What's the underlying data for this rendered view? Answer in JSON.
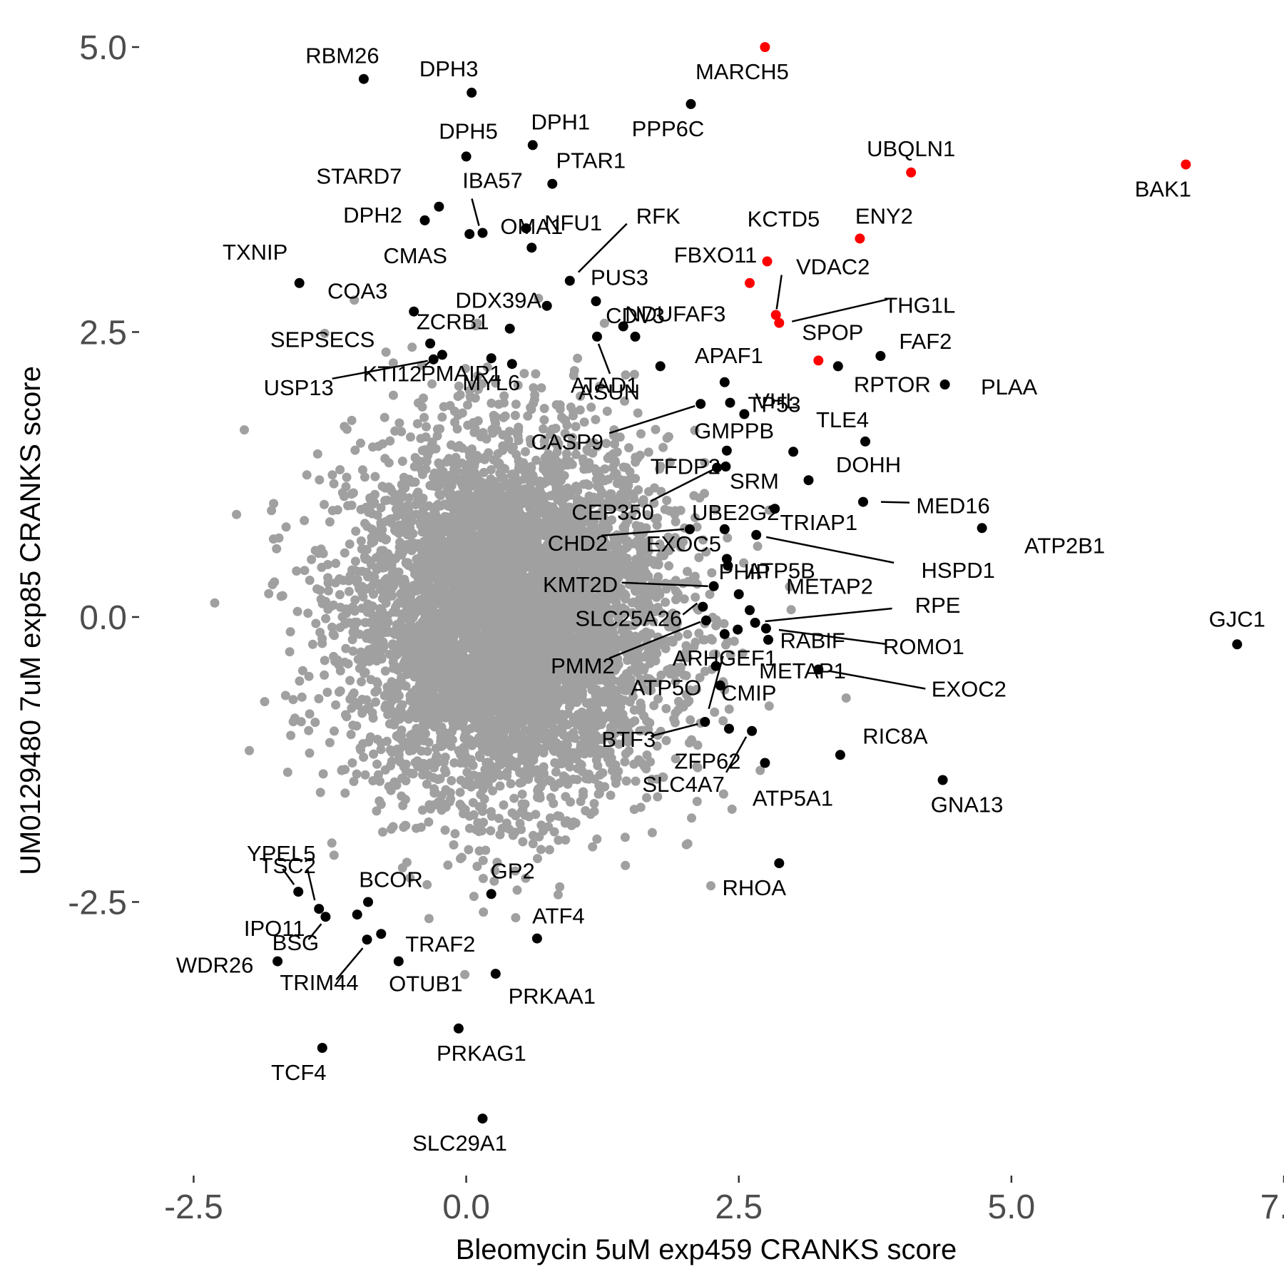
{
  "chart_data": {
    "type": "scatter",
    "title": "",
    "xlabel": "Bleomycin 5uM exp459 CRANKS score",
    "ylabel": "UM0129480 7uM exp85 CRANKS score",
    "xlim": [
      -3.0,
      7.5
    ],
    "ylim": [
      -4.85,
      5.1
    ],
    "x_ticks": [
      -2.5,
      0.0,
      2.5,
      5.0,
      7.5
    ],
    "x_tick_labels": [
      "-2.5",
      "0.0",
      "2.5",
      "5.0",
      "7.5"
    ],
    "y_ticks": [
      -2.5,
      0.0,
      2.5,
      5.0
    ],
    "y_tick_labels": [
      "-2.5",
      "0.0",
      "2.5",
      "5.0"
    ],
    "grid": false,
    "colors": {
      "background": "#gray_points_placeholder",
      "gray": "#a0a0a0",
      "black": "#000000",
      "red": "#ff0000"
    },
    "background_cloud": {
      "center": [
        0.4,
        0.0
      ],
      "sd": [
        0.72,
        0.78
      ],
      "count": 6000,
      "color": "gray"
    },
    "points": [
      {
        "label": "RBM26",
        "x": -0.94,
        "y": 4.72,
        "color": "black"
      },
      {
        "label": "DPH3",
        "x": 0.05,
        "y": 4.6,
        "color": "black"
      },
      {
        "label": "MARCH5",
        "x": 2.74,
        "y": 5.0,
        "color": "red"
      },
      {
        "label": "PPP6C",
        "x": 2.06,
        "y": 4.5,
        "color": "black"
      },
      {
        "label": "DPH1",
        "x": 0.61,
        "y": 4.14,
        "color": "black"
      },
      {
        "label": "DPH5",
        "x": 0.0,
        "y": 4.04,
        "color": "black"
      },
      {
        "label": "UBQLN1",
        "x": 4.08,
        "y": 3.9,
        "color": "red"
      },
      {
        "label": "BAK1",
        "x": 6.6,
        "y": 3.97,
        "color": "red"
      },
      {
        "label": "PTAR1",
        "x": 0.79,
        "y": 3.8,
        "color": "black"
      },
      {
        "label": "STARD7",
        "x": -0.25,
        "y": 3.6,
        "color": "black"
      },
      {
        "label": "IBA57",
        "x": 0.15,
        "y": 3.37,
        "color": "black"
      },
      {
        "label": "DPH2",
        "x": -0.38,
        "y": 3.48,
        "color": "black"
      },
      {
        "label": "NFU1",
        "x": 0.55,
        "y": 3.41,
        "color": "black"
      },
      {
        "label": "RFK",
        "x": 0.95,
        "y": 2.95,
        "color": "black"
      },
      {
        "label": "KCTD5",
        "x": 2.76,
        "y": 3.12,
        "color": "red"
      },
      {
        "label": "ENY2",
        "x": 3.61,
        "y": 3.32,
        "color": "red"
      },
      {
        "label": "CMAS",
        "x": 0.03,
        "y": 3.36,
        "color": "black"
      },
      {
        "label": "OMA1",
        "x": 0.6,
        "y": 3.24,
        "color": "black"
      },
      {
        "label": "FBXO11",
        "x": 2.6,
        "y": 2.93,
        "color": "red"
      },
      {
        "label": "VDAC2",
        "x": 2.84,
        "y": 2.65,
        "color": "red"
      },
      {
        "label": "TXNIP",
        "x": -1.53,
        "y": 2.93,
        "color": "black"
      },
      {
        "label": "PUS3",
        "x": 1.19,
        "y": 2.77,
        "color": "black"
      },
      {
        "label": "DDX39A",
        "x": 0.74,
        "y": 2.73,
        "color": "black"
      },
      {
        "label": "NDUFAF3",
        "x": 1.44,
        "y": 2.55,
        "color": "black"
      },
      {
        "label": "THG1L",
        "x": 2.87,
        "y": 2.58,
        "color": "red"
      },
      {
        "label": "COA3",
        "x": -0.48,
        "y": 2.68,
        "color": "black"
      },
      {
        "label": "CDV3",
        "x": 1.55,
        "y": 2.46,
        "color": "black"
      },
      {
        "label": "ZCRB1",
        "x": 0.4,
        "y": 2.53,
        "color": "black"
      },
      {
        "label": "SEPSECS",
        "x": -0.33,
        "y": 2.4,
        "color": "black"
      },
      {
        "label": "APAF1",
        "x": 2.37,
        "y": 2.06,
        "color": "black"
      },
      {
        "label": "SPOP",
        "x": 3.23,
        "y": 2.25,
        "color": "red"
      },
      {
        "label": "FAF2",
        "x": 3.8,
        "y": 2.29,
        "color": "black"
      },
      {
        "label": "USP13",
        "x": -0.3,
        "y": 2.26,
        "color": "black"
      },
      {
        "label": "PMAIP1",
        "x": 0.42,
        "y": 2.22,
        "color": "black"
      },
      {
        "label": "ATAD1",
        "x": 1.78,
        "y": 2.2,
        "color": "black"
      },
      {
        "label": "VHL",
        "x": 2.42,
        "y": 1.88,
        "color": "black"
      },
      {
        "label": "RPTOR",
        "x": 3.41,
        "y": 2.2,
        "color": "black"
      },
      {
        "label": "PLAA",
        "x": 4.39,
        "y": 2.04,
        "color": "black"
      },
      {
        "label": "KTI12",
        "x": -0.22,
        "y": 2.3,
        "color": "black"
      },
      {
        "label": "MYL6",
        "x": 0.23,
        "y": 2.27,
        "color": "black"
      },
      {
        "label": "ASUN",
        "x": 1.2,
        "y": 2.46,
        "color": "black"
      },
      {
        "label": "TLE4",
        "x": 3.66,
        "y": 1.54,
        "color": "black"
      },
      {
        "label": "TP53",
        "x": 2.55,
        "y": 1.78,
        "color": "black"
      },
      {
        "label": "CASP9",
        "x": 2.15,
        "y": 1.87,
        "color": "black"
      },
      {
        "label": "GMPPB",
        "x": 3.0,
        "y": 1.45,
        "color": "black"
      },
      {
        "label": "TFDP2",
        "x": 2.39,
        "y": 1.46,
        "color": "black"
      },
      {
        "label": "DOHH",
        "x": 3.14,
        "y": 1.2,
        "color": "black"
      },
      {
        "label": "SRM",
        "x": 2.38,
        "y": 1.32,
        "color": "black"
      },
      {
        "label": "CEP350",
        "x": 2.3,
        "y": 1.31,
        "color": "black"
      },
      {
        "label": "MED16",
        "x": 3.64,
        "y": 1.01,
        "color": "black"
      },
      {
        "label": "UBE2G2",
        "x": 2.83,
        "y": 0.95,
        "color": "black"
      },
      {
        "label": "ATP2B1",
        "x": 4.73,
        "y": 0.78,
        "color": "black"
      },
      {
        "label": "TRIAP1",
        "x": 2.37,
        "y": 0.77,
        "color": "black"
      },
      {
        "label": "CHD2",
        "x": 2.05,
        "y": 0.77,
        "color": "black"
      },
      {
        "label": "HSPD1",
        "x": 2.66,
        "y": 0.72,
        "color": "black"
      },
      {
        "label": "EXOC5",
        "x": 2.4,
        "y": 0.45,
        "color": "black"
      },
      {
        "label": "ATP5B",
        "x": 2.39,
        "y": 0.51,
        "color": "black"
      },
      {
        "label": "KMT2D",
        "x": 2.27,
        "y": 0.27,
        "color": "black"
      },
      {
        "label": "PHIP",
        "x": 2.5,
        "y": 0.2,
        "color": "black"
      },
      {
        "label": "METAP2",
        "x": 2.6,
        "y": 0.06,
        "color": "black"
      },
      {
        "label": "RPE",
        "x": 2.65,
        "y": -0.05,
        "color": "black"
      },
      {
        "label": "SLC25A26",
        "x": 2.17,
        "y": 0.09,
        "color": "black"
      },
      {
        "label": "GJC1",
        "x": 7.07,
        "y": -0.24,
        "color": "black"
      },
      {
        "label": "ROMO1",
        "x": 2.75,
        "y": -0.1,
        "color": "black"
      },
      {
        "label": "RABIF",
        "x": 2.49,
        "y": -0.11,
        "color": "black"
      },
      {
        "label": "PMM2",
        "x": 2.2,
        "y": -0.03,
        "color": "black"
      },
      {
        "label": "ARHGEF1",
        "x": 2.37,
        "y": -0.15,
        "color": "black"
      },
      {
        "label": "EXOC2",
        "x": 3.23,
        "y": -0.46,
        "color": "black"
      },
      {
        "label": "METAP1",
        "x": 2.77,
        "y": -0.2,
        "color": "black"
      },
      {
        "label": "CMIP",
        "x": 2.33,
        "y": -0.6,
        "color": "black"
      },
      {
        "label": "ATP5O",
        "x": 2.29,
        "y": -0.43,
        "color": "black"
      },
      {
        "label": "RIC8A",
        "x": 3.43,
        "y": -1.21,
        "color": "black"
      },
      {
        "label": "BTF3",
        "x": 2.19,
        "y": -0.92,
        "color": "black"
      },
      {
        "label": "ZFP62",
        "x": 2.41,
        "y": -0.98,
        "color": "black"
      },
      {
        "label": "GNA13",
        "x": 4.37,
        "y": -1.43,
        "color": "black"
      },
      {
        "label": "SLC4A7",
        "x": 2.62,
        "y": -1.0,
        "color": "black"
      },
      {
        "label": "ATP5A1",
        "x": 2.74,
        "y": -1.28,
        "color": "black"
      },
      {
        "label": "YPEL5",
        "x": -1.35,
        "y": -2.56,
        "color": "black"
      },
      {
        "label": "RHOA",
        "x": 2.87,
        "y": -2.16,
        "color": "black"
      },
      {
        "label": "TSC2",
        "x": -1.54,
        "y": -2.41,
        "color": "black"
      },
      {
        "label": "GP2",
        "x": 0.23,
        "y": -2.43,
        "color": "black"
      },
      {
        "label": "BCOR",
        "x": -0.9,
        "y": -2.5,
        "color": "black"
      },
      {
        "label": "ATF4",
        "x": 0.65,
        "y": -2.82,
        "color": "black"
      },
      {
        "label": "IPO11",
        "x": -1.0,
        "y": -2.61,
        "color": "black"
      },
      {
        "label": "TRAF2",
        "x": -0.78,
        "y": -2.78,
        "color": "black"
      },
      {
        "label": "WDR26",
        "x": -1.73,
        "y": -3.02,
        "color": "black"
      },
      {
        "label": "BSG",
        "x": -1.29,
        "y": -2.63,
        "color": "black"
      },
      {
        "label": "OTUB1",
        "x": -0.62,
        "y": -3.02,
        "color": "black"
      },
      {
        "label": "PRKAA1",
        "x": 0.27,
        "y": -3.13,
        "color": "black"
      },
      {
        "label": "TRIM44",
        "x": -0.91,
        "y": -2.83,
        "color": "black"
      },
      {
        "label": "PRKAG1",
        "x": -0.07,
        "y": -3.61,
        "color": "black"
      },
      {
        "label": "TCF4",
        "x": -1.32,
        "y": -3.78,
        "color": "black"
      },
      {
        "label": "SLC29A1",
        "x": 0.15,
        "y": -4.4,
        "color": "black"
      }
    ]
  }
}
